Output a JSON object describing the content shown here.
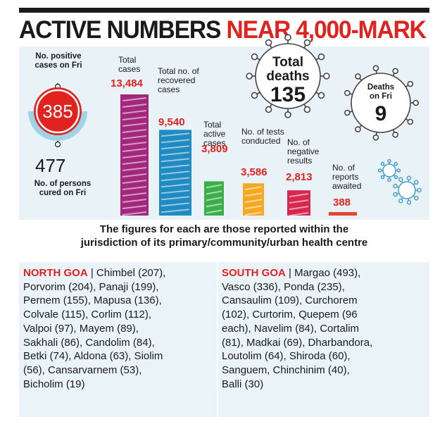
{
  "headline": {
    "part1": "ACTIVE NUMBERS",
    "part2": "NEAR 4,000-MARK"
  },
  "side_stats": {
    "positive_label": "No. positive cases on Fri",
    "positive_value": "385",
    "cured_value": "477",
    "cured_label": "No. of persons cured on Fri"
  },
  "deaths": {
    "total_label": "Total deaths",
    "total_value": "135",
    "fri_label": "Deaths on Fri",
    "fri_value": "9"
  },
  "chart_data": {
    "type": "bar",
    "categories": [
      "Total cases",
      "Total no. of recovered cases",
      "Total active cases",
      "No. of tests conducted",
      "No. of negative results",
      "No. of reports awaited"
    ],
    "values": [
      13484,
      9540,
      3809,
      3586,
      2813,
      388
    ],
    "value_labels": [
      "13,484",
      "9,540",
      "3,809",
      "3,586",
      "2,813",
      "388"
    ],
    "colors": [
      "#a3277d",
      "#1f8bc0",
      "#3cae4a",
      "#f7a823",
      "#d7284f",
      "#e8432b"
    ]
  },
  "info_text": {
    "line1": "The figures for each are those reported within the",
    "line2": "jurisdiction of its primary/community/urban health centre"
  },
  "north_goa": {
    "name": "NORTH GOA",
    "lines": [
      "Chimbel (207),",
      "Porvorim (204), Panaji (199),",
      "Pernem (155), Mapusa (136),",
      "Colvale (115), Corlim (112),",
      "Valpoi (97), Mayem (89),",
      "Sakhali (86), Candolim (84),",
      "Betki (74), Aldona (63), Siolim",
      "(56), Cansarvarnem (53),",
      "Bicholim (19)"
    ]
  },
  "south_goa": {
    "name": "SOUTH GOA",
    "lines": [
      "Margao (493),",
      "Vasco (336), Ponda (235),",
      "Cansaulim (109), Curchorem",
      "(102), Curtorim, Quepem (96",
      "each), Navelim (84), Cortalim",
      "(81), Madkai (69), Dharbandora,",
      "Loutolim (64), Shiroda (60),",
      "Sanguem, Chinchinim (40),",
      "Balli (30)"
    ]
  }
}
